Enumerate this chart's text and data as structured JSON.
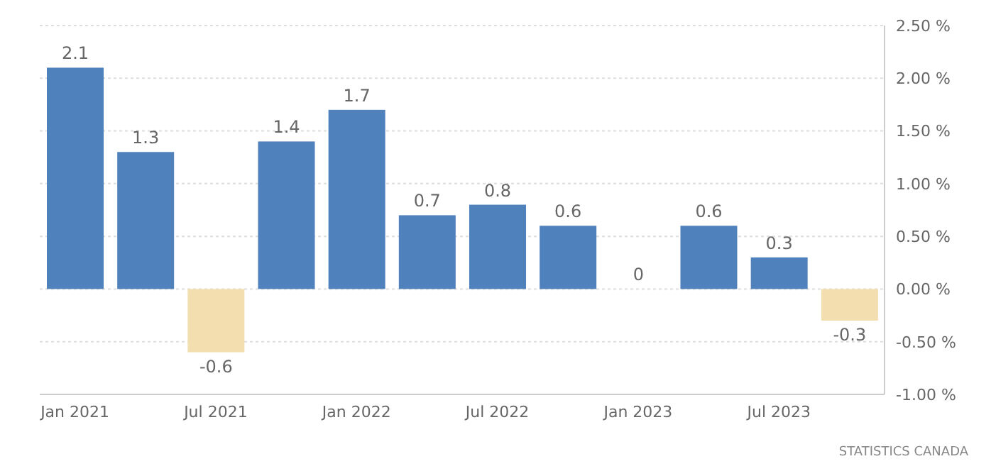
{
  "chart_data": {
    "type": "bar",
    "categories": [
      "Jan 2021",
      null,
      "Jul 2021",
      null,
      "Jan 2022",
      null,
      "Jul 2022",
      null,
      "Jan 2023",
      null,
      "Jul 2023",
      null
    ],
    "values": [
      2.1,
      1.3,
      -0.6,
      1.4,
      1.7,
      0.7,
      0.8,
      0.6,
      0,
      0.6,
      0.3,
      -0.3
    ],
    "colors": [
      "#4f81bd",
      "#4f81bd",
      "#f3deb0",
      "#4f81bd",
      "#4f81bd",
      "#4f81bd",
      "#4f81bd",
      "#4f81bd",
      "#4f81bd",
      "#4f81bd",
      "#4f81bd",
      "#f3deb0"
    ],
    "ylim": [
      -1,
      2.5
    ],
    "yticks": [
      {
        "value": -1,
        "label": "-1.00 %"
      },
      {
        "value": -0.5,
        "label": "-0.50 %"
      },
      {
        "value": 0,
        "label": "0.00 %"
      },
      {
        "value": 0.5,
        "label": "0.50 %"
      },
      {
        "value": 1,
        "label": "1.00 %"
      },
      {
        "value": 1.5,
        "label": "1.50 %"
      },
      {
        "value": 2,
        "label": "2.00 %"
      },
      {
        "value": 2.5,
        "label": "2.50 %"
      }
    ],
    "grid": "y",
    "data_labels": true,
    "annotations": [
      "STATISTICS CANADA"
    ]
  }
}
